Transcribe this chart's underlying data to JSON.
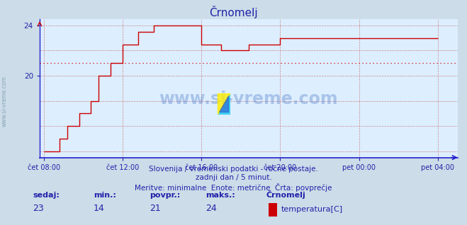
{
  "title": "Črnomelj",
  "bg_color": "#ccdce8",
  "plot_bg_color": "#ddeeff",
  "line_color": "#cc0000",
  "avg_line_color": "#cc0000",
  "avg_value": 21,
  "axis_color": "#2222cc",
  "grid_color": "#cc8888",
  "text_color": "#2222aa",
  "ylim_min": 13.5,
  "ylim_max": 24.5,
  "yticks": [
    20,
    24
  ],
  "xtick_labels": [
    "čet 08:00",
    "čet 12:00",
    "čet 16:00",
    "čet 20:00",
    "pet 00:00",
    "pet 04:00"
  ],
  "xtick_positions": [
    0.0,
    0.2,
    0.4,
    0.6,
    0.8,
    1.0
  ],
  "subtitle1": "Slovenija / vremenski podatki - ročne postaje.",
  "subtitle2": "zadnji dan / 5 minut.",
  "subtitle3": "Meritve: minimalne  Enote: metrične  Črta: povprečje",
  "footer_sedaj_label": "sedaj:",
  "footer_min_label": "min.:",
  "footer_povpr_label": "povpr.:",
  "footer_maks_label": "maks.:",
  "footer_sedaj": "23",
  "footer_min": "14",
  "footer_povpr": "21",
  "footer_maks": "24",
  "footer_station": "Črnomelj",
  "footer_series": "temperatura[C]",
  "watermark": "www.si-vreme.com",
  "time_x": [
    0.0,
    0.04,
    0.04,
    0.06,
    0.06,
    0.09,
    0.09,
    0.12,
    0.12,
    0.14,
    0.14,
    0.17,
    0.17,
    0.2,
    0.2,
    0.24,
    0.24,
    0.28,
    0.28,
    0.4,
    0.4,
    0.45,
    0.45,
    0.52,
    0.52,
    0.6,
    0.6,
    0.65,
    0.65,
    1.0
  ],
  "temp_y": [
    14,
    14,
    15,
    15,
    16,
    16,
    17,
    17,
    18,
    18,
    20,
    20,
    21,
    21,
    22.5,
    22.5,
    23.5,
    23.5,
    24,
    24,
    22.5,
    22.5,
    22,
    22,
    22.5,
    22.5,
    23,
    23,
    23,
    23
  ]
}
